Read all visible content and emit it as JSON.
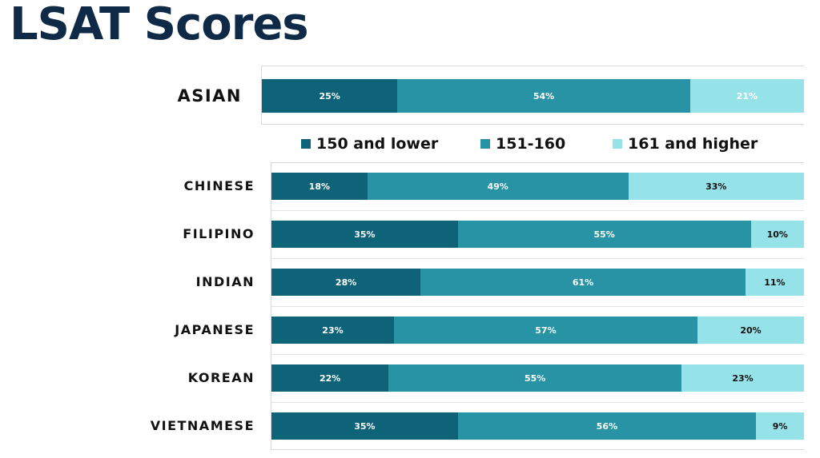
{
  "chart_data": {
    "type": "bar",
    "orientation": "horizontal",
    "stacked": true,
    "title": "LSAT Scores",
    "legend": {
      "position": "between-panels"
    },
    "xlim": [
      0,
      100
    ],
    "value_suffix": "%",
    "series": [
      {
        "name": "150 and lower",
        "color": "#0e6379"
      },
      {
        "name": "151-160",
        "color": "#2893a5"
      },
      {
        "name": "161 and higher",
        "color": "#95e2e8"
      }
    ],
    "panels": [
      {
        "categories": [
          "ASIAN"
        ],
        "values": [
          [
            25,
            54,
            21
          ]
        ]
      },
      {
        "categories": [
          "CHINESE",
          "FILIPINO",
          "INDIAN",
          "JAPANESE",
          "KOREAN",
          "VIETNAMESE"
        ],
        "values": [
          [
            18,
            49,
            33
          ],
          [
            35,
            55,
            10
          ],
          [
            28,
            61,
            11
          ],
          [
            23,
            57,
            20
          ],
          [
            22,
            55,
            23
          ],
          [
            35,
            56,
            9
          ]
        ]
      }
    ]
  }
}
